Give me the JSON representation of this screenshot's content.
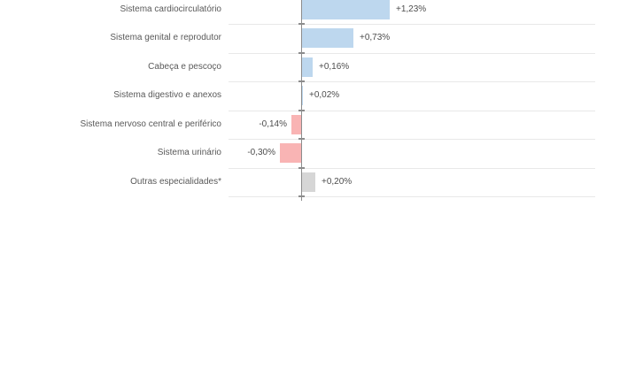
{
  "chart_data": {
    "type": "bar",
    "orientation": "horizontal",
    "unit": "%",
    "title": "",
    "xlabel": "",
    "ylabel": "",
    "legend": "none",
    "grid": "row-separator-lines",
    "xlim": [
      -1.0,
      4.08
    ],
    "categories": [
      "Sistema cardiocirculatório",
      "Sistema genital e reprodutor",
      "Cabeça e pescoço",
      "Sistema digestivo e anexos",
      "Sistema nervoso central e periférico",
      "Sistema urinário",
      "Outras especialidades*"
    ],
    "values": [
      1.23,
      0.73,
      0.16,
      0.02,
      -0.14,
      -0.3,
      0.2
    ],
    "value_labels": [
      "+1,23%",
      "+0,73%",
      "+0,16%",
      "+0,02%",
      "-0,14%",
      "-0,30%",
      "+0,20%"
    ],
    "bar_color_keys": [
      "positive",
      "positive",
      "positive",
      "positive",
      "negative",
      "negative",
      "neutral"
    ],
    "palette": {
      "positive": "#bdd7ee",
      "negative": "#f9b4b4",
      "neutral": "#d6d6d6"
    },
    "colors": {
      "gridline": "#e8e8e8",
      "axis": "#8c8c8c",
      "tick": "#8c8c8c",
      "category_label": "#595959",
      "value_label": "#4d4d4d"
    },
    "notes": "top row partially cropped at image top edge"
  }
}
